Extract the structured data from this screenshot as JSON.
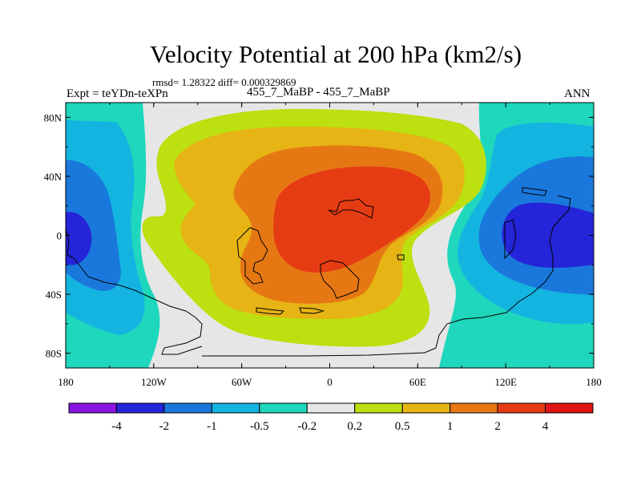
{
  "chart_data": {
    "type": "contour-map",
    "title": "Velocity Potential at 200 hPa (km2/s)",
    "stats_line": "rmsd= 1.28322 diff= 0.000329869",
    "experiment": "Expt = teYDn-teXPn",
    "cases": "455_7_MaBP - 455_7_MaBP",
    "season": "ANN",
    "x_axis": {
      "range": [
        -180,
        180
      ],
      "ticks": [
        -180,
        -120,
        -60,
        0,
        60,
        120,
        180
      ],
      "tick_labels": [
        "180",
        "120W",
        "60W",
        "0",
        "60E",
        "120E",
        "180"
      ]
    },
    "y_axis": {
      "range": [
        -90,
        90
      ],
      "ticks": [
        80,
        40,
        0,
        -40,
        -80
      ],
      "tick_labels": [
        "80N",
        "40N",
        "0",
        "40S",
        "80S"
      ]
    },
    "colorbar": {
      "levels": [
        -4,
        -2,
        -1,
        -0.5,
        -0.2,
        0.2,
        0.5,
        1,
        2,
        4
      ],
      "level_labels": [
        "-4",
        "-2",
        "-1",
        "-0.5",
        "-0.2",
        "0.2",
        "0.5",
        "1",
        "2",
        "4"
      ],
      "colors": [
        "#8a14e0",
        "#2424d8",
        "#1a78dc",
        "#14b4e0",
        "#1ed7bc",
        "#e6e6e6",
        "#bce010",
        "#e6b414",
        "#e67814",
        "#e63c14",
        "#e01414"
      ]
    },
    "field_colors": {
      "neg_weak": "#1ed7bc",
      "neg_mid": "#14b4e0",
      "neg_strong": "#1a78dc",
      "neg_max": "#2424d8",
      "neutral": "#e6e6e6",
      "pos_weak": "#bce010",
      "pos_mid": "#e6b414",
      "pos_strong": "#e67814",
      "pos_max": "#e63c14"
    }
  }
}
